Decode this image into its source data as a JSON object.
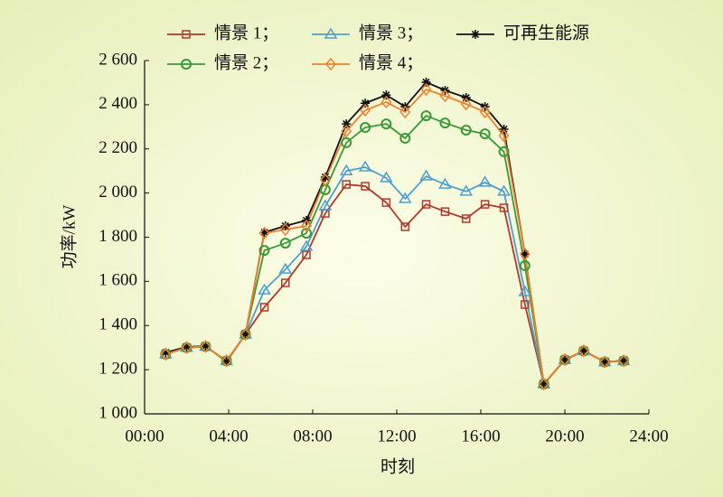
{
  "chart_data": {
    "type": "line",
    "x": [
      1.0,
      2.0,
      2.9,
      3.9,
      4.8,
      5.7,
      6.7,
      7.7,
      8.6,
      9.6,
      10.5,
      11.5,
      12.4,
      13.4,
      14.3,
      15.3,
      16.2,
      17.1,
      18.1,
      19.0,
      20.0,
      20.9,
      21.9,
      22.8
    ],
    "series": [
      {
        "name": "情景 1；",
        "color": "#b5382c",
        "marker": "square",
        "values": [
          1270,
          1300,
          1305,
          1240,
          1360,
          1483,
          1593,
          1720,
          1908,
          2039,
          2031,
          1957,
          1847,
          1949,
          1916,
          1884,
          1949,
          1933,
          1495,
          1135,
          1245,
          1285,
          1235,
          1240
        ]
      },
      {
        "name": "情景 3；",
        "color": "#4d9fd0",
        "marker": "triangle",
        "values": [
          1270,
          1300,
          1305,
          1240,
          1360,
          1560,
          1654,
          1757,
          1941,
          2100,
          2117,
          2068,
          1974,
          2076,
          2039,
          2007,
          2048,
          2007,
          1552,
          1135,
          1245,
          1285,
          1235,
          1240
        ]
      },
      {
        "name": "可再生能源",
        "color": "#111111",
        "marker": "star",
        "values": [
          1278,
          1303,
          1307,
          1237,
          1360,
          1822,
          1851,
          1876,
          2072,
          2313,
          2407,
          2444,
          2391,
          2502,
          2465,
          2432,
          2391,
          2289,
          1724,
          1135,
          1245,
          1286,
          1235,
          1241
        ]
      },
      {
        "name": "情景 2；",
        "color": "#3a9a3a",
        "marker": "circle",
        "values": [
          1270,
          1300,
          1305,
          1240,
          1360,
          1740,
          1773,
          1818,
          2015,
          2228,
          2297,
          2313,
          2248,
          2350,
          2317,
          2285,
          2268,
          2187,
          1671,
          1135,
          1245,
          1285,
          1235,
          1240
        ]
      },
      {
        "name": "情景 4；",
        "color": "#f0802e",
        "marker": "diamond",
        "values": [
          1270,
          1300,
          1305,
          1240,
          1360,
          1818,
          1835,
          1851,
          2060,
          2280,
          2375,
          2412,
          2367,
          2469,
          2440,
          2403,
          2367,
          2260,
          1724,
          1135,
          1245,
          1285,
          1235,
          1240
        ]
      }
    ],
    "xlabel": "时刻",
    "ylabel": "功率/kW",
    "xlim": [
      0,
      24
    ],
    "xticks": [
      {
        "value": 0,
        "label": "00:00"
      },
      {
        "value": 4,
        "label": "04:00"
      },
      {
        "value": 8,
        "label": "08:00"
      },
      {
        "value": 12,
        "label": "12:00"
      },
      {
        "value": 16,
        "label": "16:00"
      },
      {
        "value": 20,
        "label": "20:00"
      },
      {
        "value": 24,
        "label": "24:00"
      }
    ],
    "ylim": [
      1000,
      2600
    ],
    "yticks": [
      {
        "value": 1000,
        "label": "1 000"
      },
      {
        "value": 1200,
        "label": "1 200"
      },
      {
        "value": 1400,
        "label": "1 400"
      },
      {
        "value": 1600,
        "label": "1 600"
      },
      {
        "value": 1800,
        "label": "1 800"
      },
      {
        "value": 2000,
        "label": "2 000"
      },
      {
        "value": 2200,
        "label": "2 200"
      },
      {
        "value": 2400,
        "label": "2 400"
      },
      {
        "value": 2600,
        "label": "2 600"
      }
    ],
    "grid": false,
    "legend": "top"
  }
}
